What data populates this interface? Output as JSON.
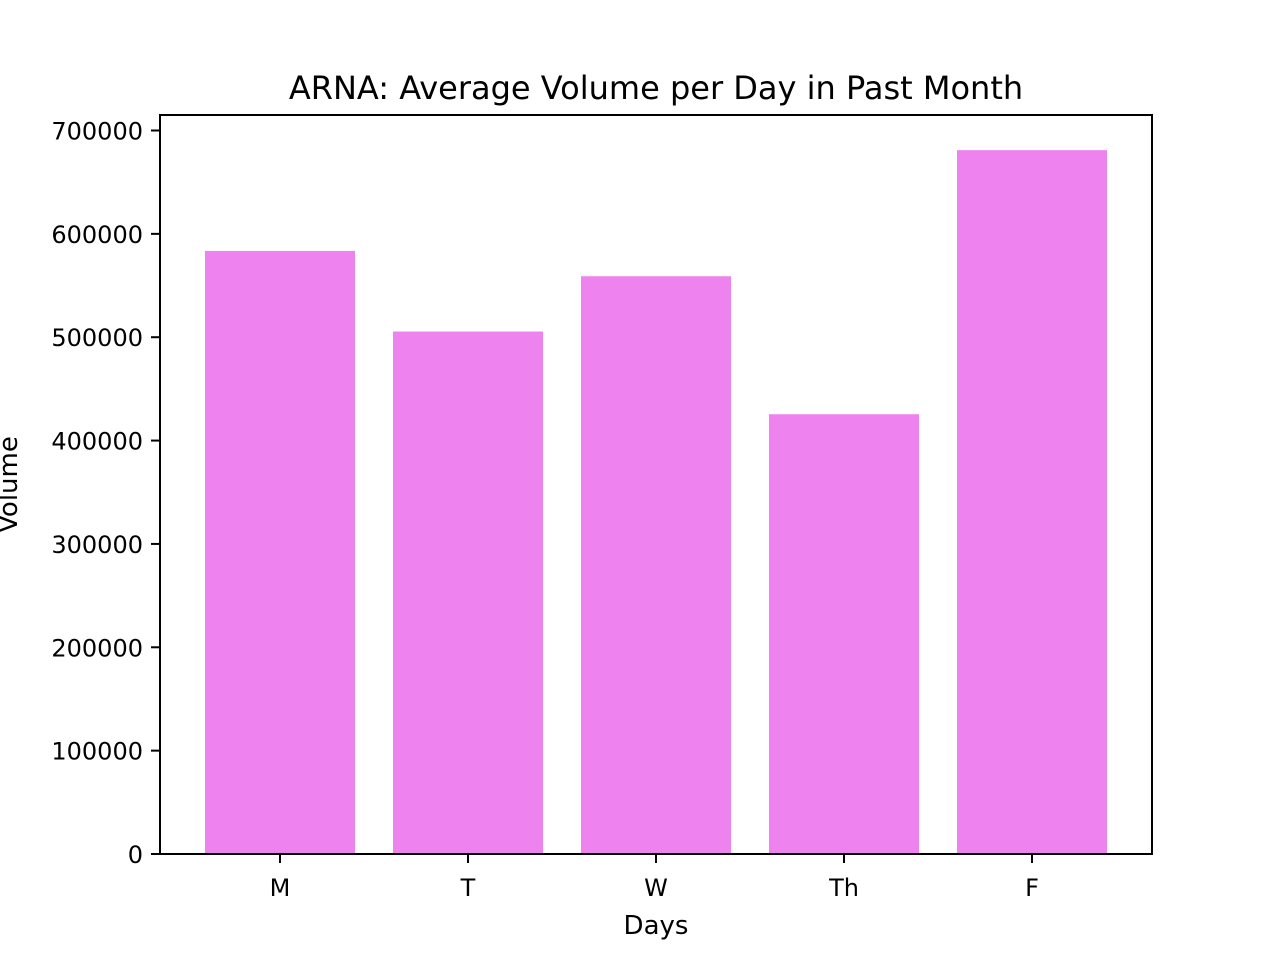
{
  "chart_data": {
    "type": "bar",
    "title": "ARNA: Average Volume per Day in Past Month",
    "xlabel": "Days",
    "ylabel": "Volume",
    "categories": [
      "M",
      "T",
      "W",
      "Th",
      "F"
    ],
    "values": [
      583500,
      505500,
      559000,
      425500,
      681000
    ],
    "ylim": [
      0,
      715000
    ],
    "yticks": [
      0,
      100000,
      200000,
      300000,
      400000,
      500000,
      600000,
      700000
    ],
    "ytick_labels": [
      "0",
      "100000",
      "200000",
      "300000",
      "400000",
      "500000",
      "600000",
      "700000"
    ],
    "bar_color": "#EE82EE",
    "grid": false,
    "legend": "none"
  }
}
